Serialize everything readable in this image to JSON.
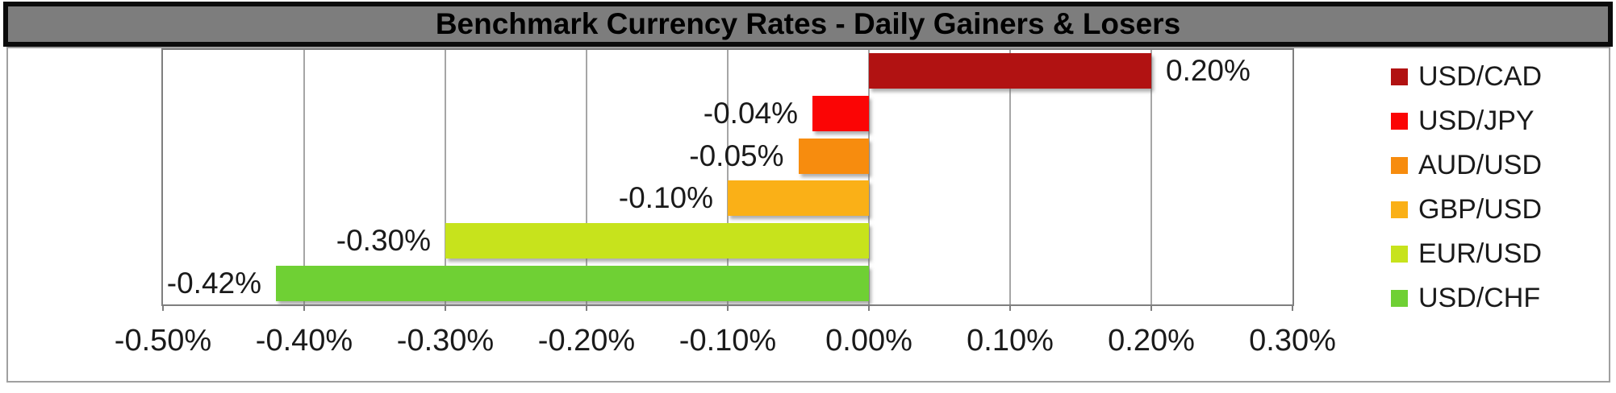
{
  "chart_data": {
    "type": "bar",
    "orientation": "horizontal",
    "title": "Benchmark Currency Rates - Daily Gainers & Losers",
    "unit": "%",
    "series": [
      {
        "name": "USD/CAD",
        "value": 0.2,
        "label": "0.20%",
        "color": "#B11212"
      },
      {
        "name": "USD/JPY",
        "value": -0.04,
        "label": "-0.04%",
        "color": "#FB0505"
      },
      {
        "name": "AUD/USD",
        "value": -0.05,
        "label": "-0.05%",
        "color": "#F78C0E"
      },
      {
        "name": "GBP/USD",
        "value": -0.1,
        "label": "-0.10%",
        "color": "#FAB017"
      },
      {
        "name": "EUR/USD",
        "value": -0.3,
        "label": "-0.30%",
        "color": "#C7E31C"
      },
      {
        "name": "USD/CHF",
        "value": -0.42,
        "label": "-0.42%",
        "color": "#6FD034"
      }
    ],
    "x_axis": {
      "min": -0.5,
      "max": 0.3,
      "step": 0.1,
      "tick_labels": [
        "-0.50%",
        "-0.40%",
        "-0.30%",
        "-0.20%",
        "-0.10%",
        "0.00%",
        "0.10%",
        "0.20%",
        "0.30%"
      ]
    },
    "grid": true,
    "legend_position": "right"
  },
  "colors": {
    "title_bg": "#7D7D7D",
    "title_border": "#0B0B0B",
    "title_text": "#000000",
    "chart_border": "#A0A0A0",
    "plot_border": "#7F7F7F",
    "gridline": "#A6A6A6",
    "axis_text": "#1A1A1A",
    "label_text": "#1A1A1A",
    "background": "#FFFFFF"
  }
}
